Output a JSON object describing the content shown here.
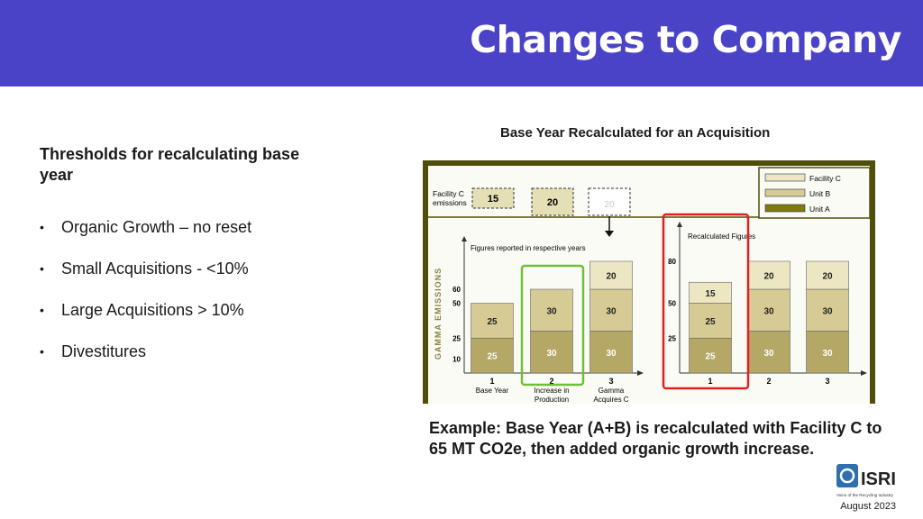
{
  "slide": {
    "title": "Changes to Company",
    "left_heading": "Thresholds for recalculating base year",
    "bullets": [
      "Organic Growth – no reset",
      "Small Acquisitions - <10%",
      "Large Acquisitions > 10%",
      "Divestitures"
    ],
    "figure_caption": "Base Year Recalculated for an Acquisition",
    "example_text": "Example:  Base Year (A+B) is recalculated with Facility C to 65 MT CO2e, then added organic growth increase.",
    "date": "August 2023"
  },
  "logo": {
    "name": "ISRI",
    "tagline": "Voice of the Recycling Industry"
  },
  "colors": {
    "banner": "#4a43c8",
    "facility_c": "#ece6c2",
    "unit_b": "#d6cb94",
    "unit_a": "#b5a766",
    "frame": "#4f4f0a",
    "green_box": "#6fbf3a",
    "red_box": "#e02020"
  },
  "figure": {
    "legend": [
      "Facility C",
      "Unit B",
      "Unit A"
    ],
    "facility_c_label": "Facility C emissions",
    "facility_c_values": [
      "15",
      "20",
      "20"
    ],
    "left_chart": {
      "header": "Figures reported in respective years",
      "y_axis_title": "GAMMA EMISSIONS",
      "y_ticks": [
        "60",
        "50",
        "25",
        "10"
      ],
      "x_numbers": [
        "1",
        "2",
        "3"
      ],
      "x_labels": [
        [
          "Base Year"
        ],
        [
          "Increase in",
          "Production"
        ],
        [
          "Gamma",
          "Acquires C"
        ]
      ],
      "bar_labels": [
        [
          "25",
          "25"
        ],
        [
          "30",
          "30"
        ],
        [
          "30",
          "30",
          "20"
        ]
      ]
    },
    "right_chart": {
      "header": "Recalculated Figures",
      "y_ticks": [
        "80",
        "50",
        "25"
      ],
      "x_numbers": [
        "1",
        "2",
        "3"
      ],
      "bar_labels": [
        [
          "25",
          "25",
          "15"
        ],
        [
          "30",
          "30",
          "20"
        ],
        [
          "30",
          "30",
          "20"
        ]
      ]
    }
  },
  "chart_data": {
    "type": "bar",
    "title": "Base Year Recalculated for an Acquisition",
    "left": {
      "subtitle": "Figures reported in respective years",
      "ylabel": "GAMMA EMISSIONS",
      "categories": [
        "Base Year",
        "Increase in Production",
        "Gamma Acquires C"
      ],
      "series": [
        {
          "name": "Unit A",
          "values": [
            25,
            30,
            30
          ]
        },
        {
          "name": "Unit B",
          "values": [
            25,
            30,
            30
          ]
        },
        {
          "name": "Facility C",
          "values": [
            0,
            0,
            20
          ]
        }
      ]
    },
    "right": {
      "subtitle": "Recalculated Figures",
      "categories": [
        "1",
        "2",
        "3"
      ],
      "series": [
        {
          "name": "Unit A",
          "values": [
            25,
            30,
            30
          ]
        },
        {
          "name": "Unit B",
          "values": [
            25,
            30,
            30
          ]
        },
        {
          "name": "Facility C",
          "values": [
            15,
            20,
            20
          ]
        }
      ]
    },
    "facility_c_emissions": [
      15,
      20,
      20
    ]
  }
}
